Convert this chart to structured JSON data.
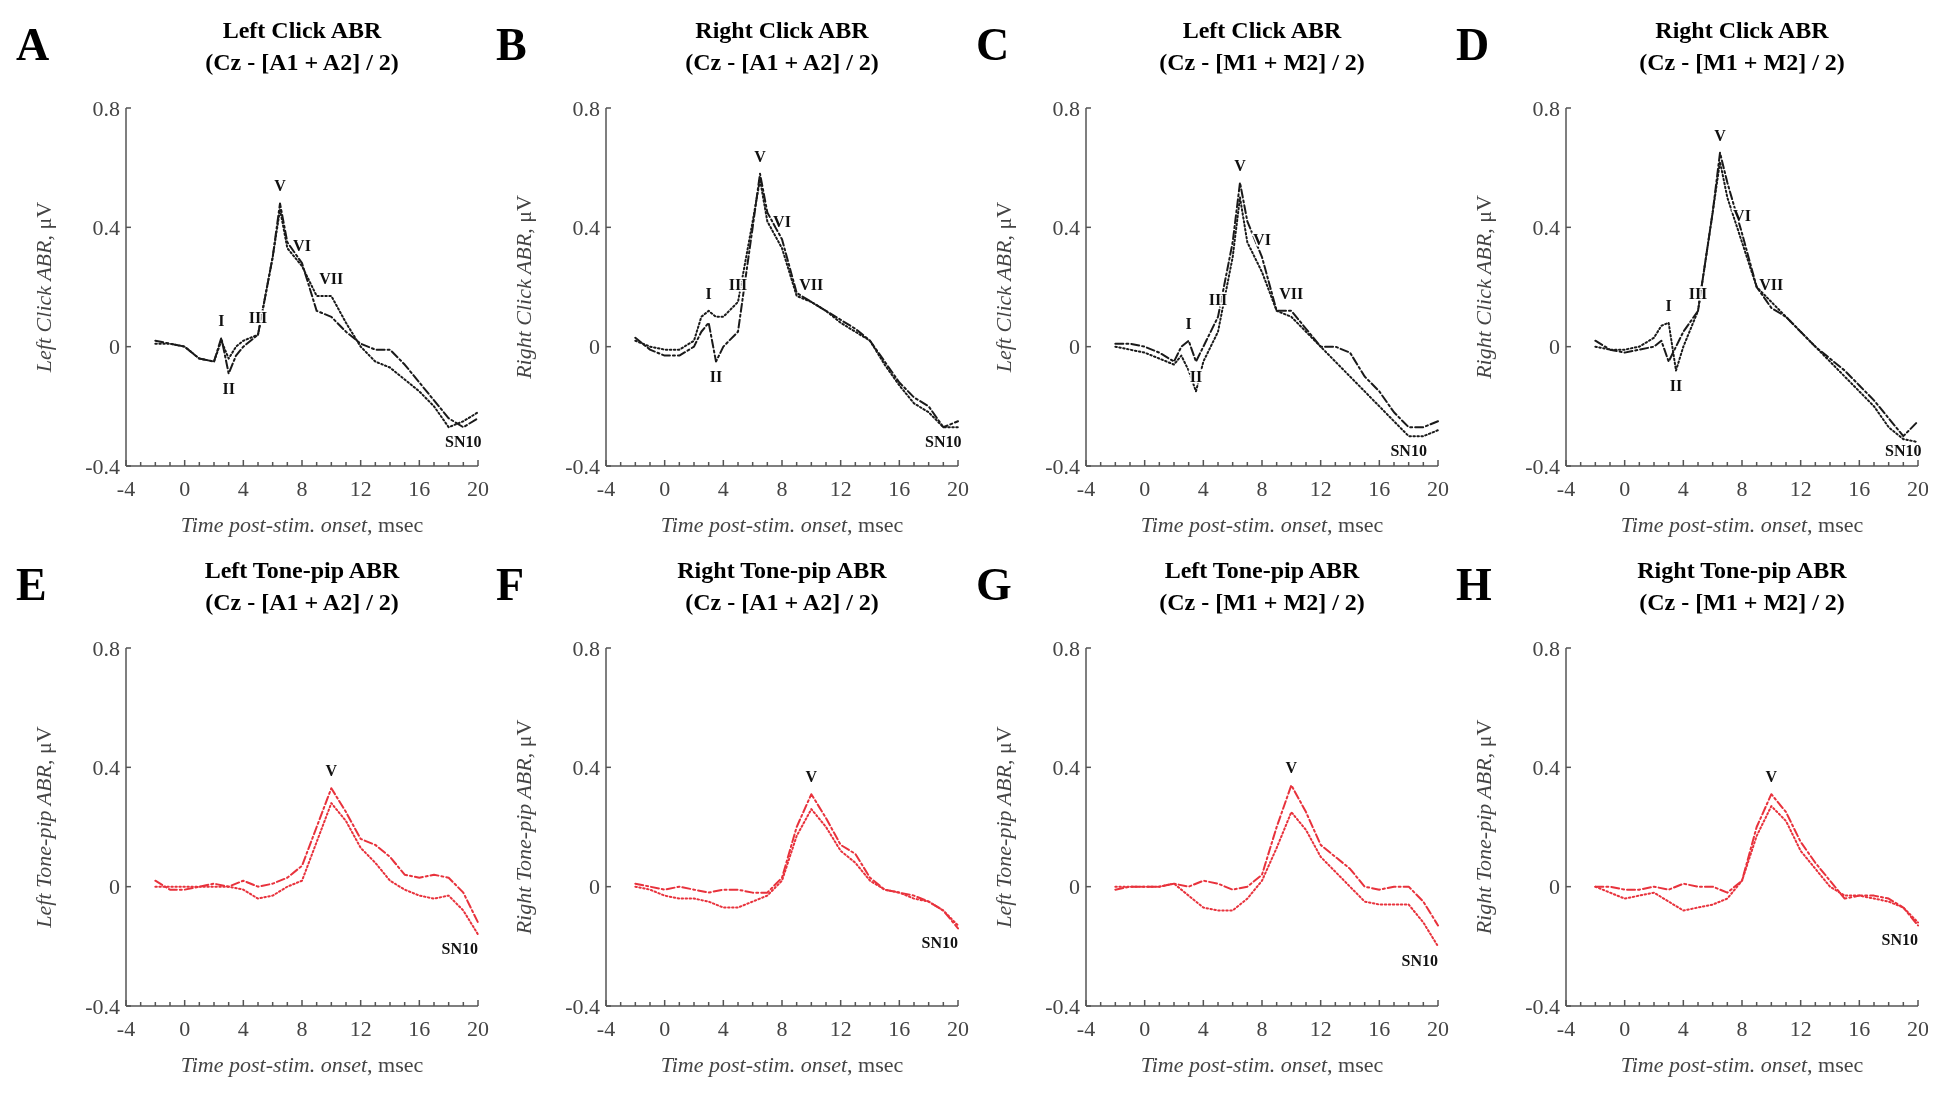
{
  "chart_data": [
    {
      "type": "line",
      "title": "Left Click ABR",
      "subtitle": "(Cz - [A1 + A2] / 2)",
      "xlabel": "Time post-stim. onset, msec",
      "ylabel": "Left Click ABR, μV",
      "x": [
        -2,
        -1,
        0,
        1,
        2,
        2.5,
        3,
        3.5,
        4,
        5,
        6,
        6.5,
        7,
        8,
        9,
        10,
        11,
        12,
        13,
        14,
        15,
        16,
        17,
        18,
        19,
        20
      ],
      "series": [
        {
          "color": "#1a1a1a",
          "line_style": "dashed",
          "values": [
            0.02,
            0.01,
            0,
            -0.04,
            -0.05,
            0.03,
            -0.09,
            -0.03,
            0.0,
            0.04,
            0.3,
            0.48,
            0.35,
            0.28,
            0.12,
            0.1,
            0.05,
            0.01,
            -0.01,
            -0.01,
            -0.06,
            -0.12,
            -0.18,
            -0.24,
            -0.27,
            -0.24
          ]
        },
        {
          "color": "#1a1a1a",
          "line_style": "dotted",
          "values": [
            0.01,
            0.01,
            0,
            -0.04,
            -0.05,
            0.02,
            -0.04,
            0.0,
            0.02,
            0.04,
            0.3,
            0.46,
            0.33,
            0.27,
            0.17,
            0.17,
            0.08,
            0.0,
            -0.05,
            -0.07,
            -0.11,
            -0.15,
            -0.2,
            -0.27,
            -0.25,
            -0.22
          ]
        }
      ],
      "xlim": [
        -4,
        20
      ],
      "ylim": [
        -0.4,
        0.8
      ],
      "xticks": [
        -4,
        {
          "value": -3,
          "label": null
        },
        {
          "value": -2,
          "label": null
        },
        {
          "value": -1,
          "label": null
        },
        0,
        {
          "value": 1,
          "label": null
        },
        {
          "value": 2,
          "label": null
        },
        {
          "value": 3,
          "label": null
        },
        4,
        {
          "value": 5,
          "label": null
        },
        {
          "value": 6,
          "label": null
        },
        {
          "value": 7,
          "label": null
        },
        8,
        {
          "value": 9,
          "label": null
        },
        {
          "value": 10,
          "label": null
        },
        {
          "value": 11,
          "label": null
        },
        12,
        {
          "value": 13,
          "label": null
        },
        {
          "value": 14,
          "label": null
        },
        {
          "value": 15,
          "label": null
        },
        16,
        {
          "value": 17,
          "label": null
        },
        {
          "value": 18,
          "label": null
        },
        {
          "value": 19,
          "label": null
        },
        20
      ],
      "yticks": [
        -0.4,
        0,
        0.4,
        0.8
      ],
      "annotations": [
        "A",
        {
          "text": "I",
          "x": 2.5,
          "y": 0.03
        },
        {
          "text": "II",
          "x": 3,
          "y": -0.09
        },
        {
          "text": "III",
          "x": 5,
          "y": 0.04
        },
        {
          "text": "V",
          "x": 6.5,
          "y": 0.48
        },
        {
          "text": "VI",
          "x": 8,
          "y": 0.28
        },
        {
          "text": "VII",
          "x": 10,
          "y": 0.17
        },
        {
          "text": "SN10",
          "x": 19,
          "y": -0.27
        }
      ]
    },
    {
      "type": "line",
      "title": "Right Click ABR",
      "subtitle": "(Cz - [A1 + A2] / 2)",
      "xlabel": "Time post-stim. onset, msec",
      "ylabel": "Right Click ABR, μV",
      "x": [
        -2,
        -1,
        0,
        1,
        2,
        2.5,
        3,
        3.5,
        4,
        5,
        6,
        6.5,
        7,
        8,
        9,
        10,
        11,
        12,
        13,
        14,
        15,
        16,
        17,
        18,
        19,
        20
      ],
      "series": [
        {
          "color": "#1a1a1a",
          "line_style": "dashed",
          "values": [
            0.03,
            -0.01,
            -0.03,
            -0.03,
            0.0,
            0.05,
            0.08,
            -0.05,
            0.0,
            0.05,
            0.4,
            0.58,
            0.45,
            0.36,
            0.18,
            0.15,
            0.12,
            0.09,
            0.06,
            0.02,
            -0.05,
            -0.12,
            -0.17,
            -0.2,
            -0.27,
            -0.25
          ]
        },
        {
          "color": "#1a1a1a",
          "line_style": "dotted",
          "values": [
            0.02,
            0.0,
            -0.01,
            -0.01,
            0.02,
            0.1,
            0.12,
            0.1,
            0.1,
            0.15,
            0.42,
            0.56,
            0.42,
            0.33,
            0.17,
            0.15,
            0.12,
            0.08,
            0.05,
            0.02,
            -0.06,
            -0.13,
            -0.19,
            -0.22,
            -0.27,
            -0.27
          ]
        }
      ],
      "xlim": [
        -4,
        20
      ],
      "ylim": [
        -0.4,
        0.8
      ],
      "xticks": [
        -4,
        {
          "value": -3,
          "label": null
        },
        {
          "value": -2,
          "label": null
        },
        {
          "value": -1,
          "label": null
        },
        0,
        {
          "value": 1,
          "label": null
        },
        {
          "value": 2,
          "label": null
        },
        {
          "value": 3,
          "label": null
        },
        4,
        {
          "value": 5,
          "label": null
        },
        {
          "value": 6,
          "label": null
        },
        {
          "value": 7,
          "label": null
        },
        8,
        {
          "value": 9,
          "label": null
        },
        {
          "value": 10,
          "label": null
        },
        {
          "value": 11,
          "label": null
        },
        12,
        {
          "value": 13,
          "label": null
        },
        {
          "value": 14,
          "label": null
        },
        {
          "value": 15,
          "label": null
        },
        16,
        {
          "value": 17,
          "label": null
        },
        {
          "value": 18,
          "label": null
        },
        {
          "value": 19,
          "label": null
        },
        20
      ],
      "yticks": [
        -0.4,
        0,
        0.4,
        0.8
      ],
      "annotations": [
        "B",
        {
          "text": "I",
          "x": 3,
          "y": 0.12
        },
        {
          "text": "II",
          "x": 3.5,
          "y": -0.05
        },
        {
          "text": "III",
          "x": 5,
          "y": 0.15
        },
        {
          "text": "V",
          "x": 6.5,
          "y": 0.58
        },
        {
          "text": "VI",
          "x": 8,
          "y": 0.36
        },
        {
          "text": "VII",
          "x": 10,
          "y": 0.15
        },
        {
          "text": "SN10",
          "x": 19,
          "y": -0.27
        }
      ]
    },
    {
      "type": "line",
      "title": "Left Click ABR",
      "subtitle": "(Cz - [M1 + M2] / 2)",
      "xlabel": "Time post-stim. onset, msec",
      "ylabel": "Left Click ABR, μV",
      "x": [
        -2,
        -1,
        0,
        1,
        2,
        2.5,
        3,
        3.5,
        4,
        5,
        6,
        6.5,
        7,
        8,
        9,
        10,
        11,
        12,
        13,
        14,
        15,
        16,
        17,
        18,
        19,
        20
      ],
      "series": [
        {
          "color": "#1a1a1a",
          "line_style": "dashed",
          "values": [
            0.01,
            0.01,
            0,
            -0.02,
            -0.05,
            0.0,
            0.02,
            -0.05,
            0.0,
            0.1,
            0.35,
            0.55,
            0.42,
            0.3,
            0.12,
            0.12,
            0.06,
            0.0,
            0.0,
            -0.02,
            -0.1,
            -0.15,
            -0.22,
            -0.27,
            -0.27,
            -0.25
          ]
        },
        {
          "color": "#1a1a1a",
          "line_style": "dotted",
          "values": [
            0.0,
            -0.01,
            -0.02,
            -0.04,
            -0.06,
            -0.03,
            -0.08,
            -0.15,
            -0.05,
            0.05,
            0.3,
            0.5,
            0.35,
            0.25,
            0.12,
            0.1,
            0.05,
            0.0,
            -0.05,
            -0.1,
            -0.15,
            -0.2,
            -0.25,
            -0.3,
            -0.3,
            -0.28
          ]
        }
      ],
      "xlim": [
        -4,
        20
      ],
      "ylim": [
        -0.4,
        0.8
      ],
      "xticks": [
        -4,
        {
          "value": -3,
          "label": null
        },
        {
          "value": -2,
          "label": null
        },
        {
          "value": -1,
          "label": null
        },
        0,
        {
          "value": 1,
          "label": null
        },
        {
          "value": 2,
          "label": null
        },
        {
          "value": 3,
          "label": null
        },
        4,
        {
          "value": 5,
          "label": null
        },
        {
          "value": 6,
          "label": null
        },
        {
          "value": 7,
          "label": null
        },
        8,
        {
          "value": 9,
          "label": null
        },
        {
          "value": 10,
          "label": null
        },
        {
          "value": 11,
          "label": null
        },
        12,
        {
          "value": 13,
          "label": null
        },
        {
          "value": 14,
          "label": null
        },
        {
          "value": 15,
          "label": null
        },
        16,
        {
          "value": 17,
          "label": null
        },
        {
          "value": 18,
          "label": null
        },
        {
          "value": 19,
          "label": null
        },
        20
      ],
      "yticks": [
        -0.4,
        0,
        0.4,
        0.8
      ],
      "annotations": [
        "C",
        {
          "text": "I",
          "x": 3,
          "y": 0.02
        },
        {
          "text": "II",
          "x": 3.5,
          "y": -0.05
        },
        {
          "text": "III",
          "x": 5,
          "y": 0.1
        },
        {
          "text": "V",
          "x": 6.5,
          "y": 0.55
        },
        {
          "text": "VI",
          "x": 8,
          "y": 0.3
        },
        {
          "text": "VII",
          "x": 10,
          "y": 0.12
        },
        {
          "text": "SN10",
          "x": 18,
          "y": -0.3
        }
      ]
    },
    {
      "type": "line",
      "title": "Right Click ABR",
      "subtitle": "(Cz - [M1 + M2] / 2)",
      "xlabel": "Time post-stim. onset, msec",
      "ylabel": "Right Click ABR, μV",
      "x": [
        -2,
        -1,
        0,
        1,
        2,
        2.5,
        3,
        3.5,
        4,
        5,
        6,
        6.5,
        7,
        8,
        9,
        10,
        11,
        12,
        13,
        14,
        15,
        16,
        17,
        18,
        19,
        20
      ],
      "series": [
        {
          "color": "#1a1a1a",
          "line_style": "dashed",
          "values": [
            0.02,
            -0.01,
            -0.02,
            -0.01,
            0.0,
            0.02,
            -0.05,
            0.0,
            0.05,
            0.12,
            0.45,
            0.65,
            0.55,
            0.38,
            0.2,
            0.13,
            0.1,
            0.05,
            0.0,
            -0.04,
            -0.08,
            -0.13,
            -0.18,
            -0.24,
            -0.3,
            -0.25
          ]
        },
        {
          "color": "#1a1a1a",
          "line_style": "dotted",
          "values": [
            0.0,
            -0.01,
            -0.01,
            0.0,
            0.03,
            0.07,
            0.08,
            -0.08,
            0.0,
            0.12,
            0.45,
            0.62,
            0.5,
            0.35,
            0.2,
            0.15,
            0.1,
            0.05,
            0.0,
            -0.05,
            -0.1,
            -0.15,
            -0.2,
            -0.27,
            -0.31,
            -0.32
          ]
        }
      ],
      "xlim": [
        -4,
        20
      ],
      "ylim": [
        -0.4,
        0.8
      ],
      "xticks": [
        -4,
        {
          "value": -3,
          "label": null
        },
        {
          "value": -2,
          "label": null
        },
        {
          "value": -1,
          "label": null
        },
        0,
        {
          "value": 1,
          "label": null
        },
        {
          "value": 2,
          "label": null
        },
        {
          "value": 3,
          "label": null
        },
        4,
        {
          "value": 5,
          "label": null
        },
        {
          "value": 6,
          "label": null
        },
        {
          "value": 7,
          "label": null
        },
        8,
        {
          "value": 9,
          "label": null
        },
        {
          "value": 10,
          "label": null
        },
        {
          "value": 11,
          "label": null
        },
        12,
        {
          "value": 13,
          "label": null
        },
        {
          "value": 14,
          "label": null
        },
        {
          "value": 15,
          "label": null
        },
        16,
        {
          "value": 17,
          "label": null
        },
        {
          "value": 18,
          "label": null
        },
        {
          "value": 19,
          "label": null
        },
        20
      ],
      "yticks": [
        -0.4,
        0,
        0.4,
        0.8
      ],
      "annotations": [
        "D",
        {
          "text": "I",
          "x": 3,
          "y": 0.08
        },
        {
          "text": "II",
          "x": 3.5,
          "y": -0.08
        },
        {
          "text": "III",
          "x": 5,
          "y": 0.12
        },
        {
          "text": "V",
          "x": 6.5,
          "y": 0.65
        },
        {
          "text": "VI",
          "x": 8,
          "y": 0.38
        },
        {
          "text": "VII",
          "x": 10,
          "y": 0.15
        },
        {
          "text": "SN10",
          "x": 19,
          "y": -0.3
        }
      ]
    },
    {
      "type": "line",
      "title": "Left Tone-pip ABR",
      "subtitle": "(Cz - [A1 + A2] / 2)",
      "xlabel": "Time post-stim. onset, msec",
      "ylabel": "Left Tone-pip ABR, μV",
      "x": [
        -2,
        -1,
        0,
        1,
        2,
        3,
        4,
        5,
        6,
        7,
        8,
        9,
        10,
        11,
        12,
        13,
        14,
        15,
        16,
        17,
        18,
        19,
        20
      ],
      "series": [
        {
          "color": "#e8323c",
          "line_style": "dashed",
          "values": [
            0.02,
            -0.01,
            -0.01,
            0.0,
            0.01,
            0.0,
            0.02,
            0.0,
            0.01,
            0.03,
            0.07,
            0.2,
            0.33,
            0.25,
            0.16,
            0.14,
            0.1,
            0.04,
            0.03,
            0.04,
            0.03,
            -0.02,
            -0.12
          ]
        },
        {
          "color": "#e8323c",
          "line_style": "dotted",
          "values": [
            0.0,
            0.0,
            0.0,
            0.0,
            0.0,
            0.0,
            -0.01,
            -0.04,
            -0.03,
            0.0,
            0.02,
            0.15,
            0.28,
            0.22,
            0.13,
            0.08,
            0.02,
            -0.01,
            -0.03,
            -0.04,
            -0.03,
            -0.08,
            -0.16
          ]
        }
      ],
      "xlim": [
        -4,
        20
      ],
      "ylim": [
        -0.4,
        0.8
      ],
      "xticks": [
        -4,
        {
          "value": -3,
          "label": null
        },
        {
          "value": -2,
          "label": null
        },
        {
          "value": -1,
          "label": null
        },
        0,
        {
          "value": 1,
          "label": null
        },
        {
          "value": 2,
          "label": null
        },
        {
          "value": 3,
          "label": null
        },
        4,
        {
          "value": 5,
          "label": null
        },
        {
          "value": 6,
          "label": null
        },
        {
          "value": 7,
          "label": null
        },
        8,
        {
          "value": 9,
          "label": null
        },
        {
          "value": 10,
          "label": null
        },
        {
          "value": 11,
          "label": null
        },
        12,
        {
          "value": 13,
          "label": null
        },
        {
          "value": 14,
          "label": null
        },
        {
          "value": 15,
          "label": null
        },
        16,
        {
          "value": 17,
          "label": null
        },
        {
          "value": 18,
          "label": null
        },
        {
          "value": 19,
          "label": null
        },
        20
      ],
      "yticks": [
        -0.4,
        0,
        0.4,
        0.8
      ],
      "annotations": [
        "E",
        {
          "text": "V",
          "x": 10,
          "y": 0.33
        },
        {
          "text": "SN10",
          "x": 20,
          "y": -0.16
        }
      ]
    },
    {
      "type": "line",
      "title": "Right Tone-pip ABR",
      "subtitle": "(Cz - [A1 + A2] / 2)",
      "xlabel": "Time post-stim. onset, msec",
      "ylabel": "Right Tone-pip ABR, μV",
      "x": [
        -2,
        -1,
        0,
        1,
        2,
        3,
        4,
        5,
        6,
        7,
        8,
        9,
        10,
        11,
        12,
        13,
        14,
        15,
        16,
        17,
        18,
        19,
        20
      ],
      "series": [
        {
          "color": "#e8323c",
          "line_style": "dashed",
          "values": [
            0.01,
            0.0,
            -0.01,
            0.0,
            -0.01,
            -0.02,
            -0.01,
            -0.01,
            -0.02,
            -0.02,
            0.03,
            0.2,
            0.31,
            0.23,
            0.14,
            0.11,
            0.03,
            -0.01,
            -0.02,
            -0.03,
            -0.05,
            -0.08,
            -0.14
          ]
        },
        {
          "color": "#e8323c",
          "line_style": "dotted",
          "values": [
            0.0,
            -0.01,
            -0.03,
            -0.04,
            -0.04,
            -0.05,
            -0.07,
            -0.07,
            -0.05,
            -0.03,
            0.02,
            0.17,
            0.26,
            0.2,
            0.12,
            0.08,
            0.02,
            -0.01,
            -0.02,
            -0.04,
            -0.05,
            -0.08,
            -0.13
          ]
        }
      ],
      "xlim": [
        -4,
        20
      ],
      "ylim": [
        -0.4,
        0.8
      ],
      "xticks": [
        -4,
        {
          "value": -3,
          "label": null
        },
        {
          "value": -2,
          "label": null
        },
        {
          "value": -1,
          "label": null
        },
        0,
        {
          "value": 1,
          "label": null
        },
        {
          "value": 2,
          "label": null
        },
        {
          "value": 3,
          "label": null
        },
        4,
        {
          "value": 5,
          "label": null
        },
        {
          "value": 6,
          "label": null
        },
        {
          "value": 7,
          "label": null
        },
        8,
        {
          "value": 9,
          "label": null
        },
        {
          "value": 10,
          "label": null
        },
        {
          "value": 11,
          "label": null
        },
        12,
        {
          "value": 13,
          "label": null
        },
        {
          "value": 14,
          "label": null
        },
        {
          "value": 15,
          "label": null
        },
        16,
        {
          "value": 17,
          "label": null
        },
        {
          "value": 18,
          "label": null
        },
        {
          "value": 19,
          "label": null
        },
        20
      ],
      "yticks": [
        -0.4,
        0,
        0.4,
        0.8
      ],
      "annotations": [
        "F",
        {
          "text": "V",
          "x": 10,
          "y": 0.31
        },
        {
          "text": "SN10",
          "x": 20,
          "y": -0.14
        }
      ]
    },
    {
      "type": "line",
      "title": "Left Tone-pip ABR",
      "subtitle": "(Cz - [M1 + M2] / 2)",
      "xlabel": "Time post-stim. onset, msec",
      "ylabel": "Left Tone-pip ABR, μV",
      "x": [
        -2,
        -1,
        0,
        1,
        2,
        3,
        4,
        5,
        6,
        7,
        8,
        9,
        10,
        11,
        12,
        13,
        14,
        15,
        16,
        17,
        18,
        19,
        20
      ],
      "series": [
        {
          "color": "#e8323c",
          "line_style": "dashed",
          "values": [
            -0.01,
            0.0,
            0.0,
            0.0,
            0.01,
            0.0,
            0.02,
            0.01,
            -0.01,
            0.0,
            0.04,
            0.2,
            0.34,
            0.25,
            0.14,
            0.1,
            0.06,
            0.0,
            -0.01,
            0.0,
            0.0,
            -0.05,
            -0.13
          ]
        },
        {
          "color": "#e8323c",
          "line_style": "dotted",
          "values": [
            0.0,
            0.0,
            0.0,
            0.0,
            0.01,
            -0.03,
            -0.07,
            -0.08,
            -0.08,
            -0.04,
            0.02,
            0.13,
            0.25,
            0.19,
            0.1,
            0.05,
            0.0,
            -0.05,
            -0.06,
            -0.06,
            -0.06,
            -0.12,
            -0.2
          ]
        }
      ],
      "xlim": [
        -4,
        20
      ],
      "ylim": [
        -0.4,
        0.8
      ],
      "xticks": [
        -4,
        {
          "value": -3,
          "label": null
        },
        {
          "value": -2,
          "label": null
        },
        {
          "value": -1,
          "label": null
        },
        0,
        {
          "value": 1,
          "label": null
        },
        {
          "value": 2,
          "label": null
        },
        {
          "value": 3,
          "label": null
        },
        4,
        {
          "value": 5,
          "label": null
        },
        {
          "value": 6,
          "label": null
        },
        {
          "value": 7,
          "label": null
        },
        8,
        {
          "value": 9,
          "label": null
        },
        {
          "value": 10,
          "label": null
        },
        {
          "value": 11,
          "label": null
        },
        12,
        {
          "value": 13,
          "label": null
        },
        {
          "value": 14,
          "label": null
        },
        {
          "value": 15,
          "label": null
        },
        16,
        {
          "value": 17,
          "label": null
        },
        {
          "value": 18,
          "label": null
        },
        {
          "value": 19,
          "label": null
        },
        20
      ],
      "yticks": [
        -0.4,
        0,
        0.4,
        0.8
      ],
      "annotations": [
        "G",
        {
          "text": "V",
          "x": 10,
          "y": 0.34
        },
        {
          "text": "SN10",
          "x": 20,
          "y": -0.2
        }
      ]
    },
    {
      "type": "line",
      "title": "Right Tone-pip ABR",
      "subtitle": "(Cz - [M1 + M2] / 2)",
      "xlabel": "Time post-stim. onset, msec",
      "ylabel": "Right Tone-pip ABR, μV",
      "x": [
        -2,
        -1,
        0,
        1,
        2,
        3,
        4,
        5,
        6,
        7,
        8,
        9,
        10,
        11,
        12,
        13,
        14,
        15,
        16,
        17,
        18,
        19,
        20
      ],
      "series": [
        {
          "color": "#e8323c",
          "line_style": "dashed",
          "values": [
            0.0,
            0.0,
            -0.01,
            -0.01,
            0.0,
            -0.01,
            0.01,
            0.0,
            0.0,
            -0.02,
            0.02,
            0.2,
            0.31,
            0.25,
            0.15,
            0.08,
            0.02,
            -0.04,
            -0.03,
            -0.03,
            -0.04,
            -0.07,
            -0.13
          ]
        },
        {
          "color": "#e8323c",
          "line_style": "dotted",
          "values": [
            0.0,
            -0.02,
            -0.04,
            -0.03,
            -0.02,
            -0.05,
            -0.08,
            -0.07,
            -0.06,
            -0.04,
            0.02,
            0.17,
            0.27,
            0.22,
            0.12,
            0.06,
            0.0,
            -0.03,
            -0.03,
            -0.04,
            -0.05,
            -0.07,
            -0.12
          ]
        }
      ],
      "xlim": [
        -4,
        20
      ],
      "ylim": [
        -0.4,
        0.8
      ],
      "xticks": [
        -4,
        {
          "value": -3,
          "label": null
        },
        {
          "value": -2,
          "label": null
        },
        {
          "value": -1,
          "label": null
        },
        0,
        {
          "value": 1,
          "label": null
        },
        {
          "value": 2,
          "label": null
        },
        {
          "value": 3,
          "label": null
        },
        4,
        {
          "value": 5,
          "label": null
        },
        {
          "value": 6,
          "label": null
        },
        {
          "value": 7,
          "label": null
        },
        8,
        {
          "value": 9,
          "label": null
        },
        {
          "value": 10,
          "label": null
        },
        {
          "value": 11,
          "label": null
        },
        12,
        {
          "value": 13,
          "label": null
        },
        {
          "value": 14,
          "label": null
        },
        {
          "value": 15,
          "label": null
        },
        16,
        {
          "value": 17,
          "label": null
        },
        {
          "value": 18,
          "label": null
        },
        {
          "value": 19,
          "label": null
        },
        20
      ],
      "yticks": [
        -0.4,
        0,
        0.4,
        0.8
      ],
      "annotations": [
        "H",
        {
          "text": "V",
          "x": 10,
          "y": 0.31
        },
        {
          "text": "SN10",
          "x": 20,
          "y": -0.13
        }
      ]
    }
  ]
}
